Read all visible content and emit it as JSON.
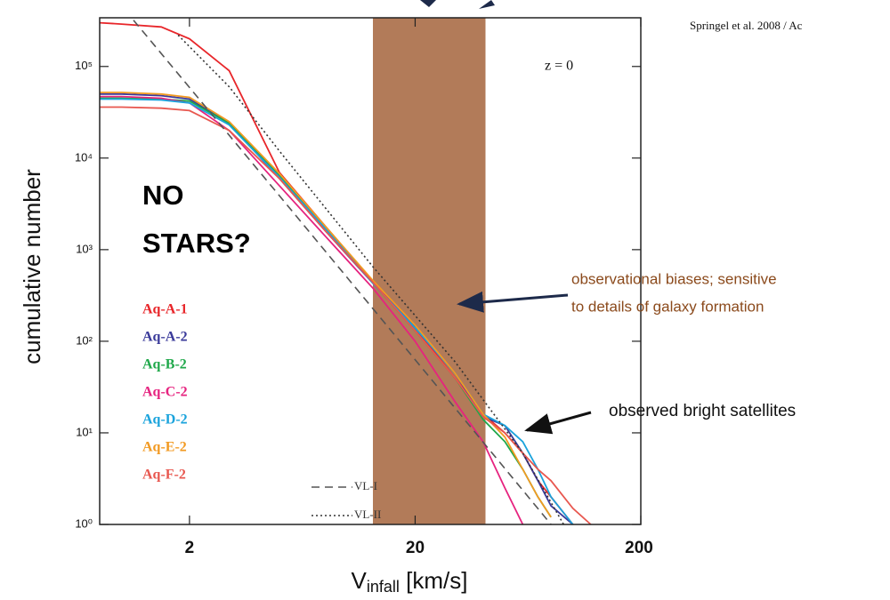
{
  "chart_data": {
    "type": "line",
    "credit": "Springel et al. 2008 / Ac",
    "redshift_label": "z = 0",
    "callout": [
      "NO",
      "STARS?"
    ],
    "band_note": [
      "observational biases; sensitive",
      "to details of galaxy formation"
    ],
    "satellites_note": "observed bright satellites",
    "y_label": "cumulative number",
    "x_label": {
      "main": "V",
      "sub": "infall",
      "unit": " [km/s]"
    },
    "xscale": "log",
    "yscale": "log",
    "xlim": [
      0.8,
      200
    ],
    "ylim": [
      1,
      340000
    ],
    "xticks": [
      2,
      20,
      200
    ],
    "yticks": [
      {
        "value": 1,
        "label": "10⁰"
      },
      {
        "value": 10,
        "label": "10¹"
      },
      {
        "value": 100,
        "label": "10²"
      },
      {
        "value": 1000,
        "label": "10³"
      },
      {
        "value": 10000,
        "label": "10⁴"
      },
      {
        "value": 100000,
        "label": "10⁵"
      }
    ],
    "band": [
      13,
      41
    ],
    "band_color": "#b27b59",
    "x": [
      0.8,
      1,
      1.5,
      2,
      3,
      5,
      8,
      13,
      20,
      30,
      40,
      50,
      60,
      70,
      80,
      100,
      120
    ],
    "series": [
      {
        "name": "Aq-A-1",
        "color": "#e8262a",
        "values": [
          300000,
          290000,
          270000,
          200000,
          90000,
          7000,
          1800,
          450,
          140,
          40,
          16,
          10,
          6,
          3,
          2,
          1,
          null
        ]
      },
      {
        "name": "Aq-A-2",
        "color": "#3a3a9a",
        "values": [
          50000,
          50000,
          48000,
          44000,
          24000,
          6000,
          1600,
          430,
          140,
          45,
          15,
          12,
          6,
          3,
          1.6,
          1,
          null
        ]
      },
      {
        "name": "Aq-B-2",
        "color": "#1fa84a",
        "values": [
          45000,
          45000,
          44000,
          42000,
          24000,
          6500,
          1700,
          440,
          130,
          40,
          14,
          8,
          4,
          2,
          1.2,
          null,
          null
        ]
      },
      {
        "name": "Aq-C-2",
        "color": "#e6237f",
        "values": [
          47000,
          47000,
          45000,
          40000,
          20000,
          5000,
          1400,
          380,
          100,
          22,
          8,
          2.5,
          1,
          null,
          null,
          null,
          null
        ]
      },
      {
        "name": "Aq-D-2",
        "color": "#1aa3dc",
        "values": [
          44000,
          44000,
          43000,
          40000,
          23000,
          6200,
          1700,
          430,
          140,
          45,
          16,
          12,
          8,
          4,
          2,
          1,
          null
        ]
      },
      {
        "name": "Aq-E-2",
        "color": "#f29a22",
        "values": [
          52000,
          52000,
          50000,
          46000,
          25000,
          6800,
          1800,
          460,
          150,
          45,
          16,
          9,
          4,
          2,
          1.2,
          null,
          null
        ]
      },
      {
        "name": "Aq-F-2",
        "color": "#e8574f",
        "values": [
          36000,
          36000,
          35000,
          33000,
          20000,
          6000,
          1600,
          440,
          130,
          40,
          15,
          10,
          6,
          4,
          3,
          1.5,
          1
        ]
      },
      {
        "name": "VL-I",
        "color": "#555555",
        "dash": "dashed",
        "x": [
          1.13,
          2,
          5,
          20,
          80
        ],
        "values": [
          320000,
          59000,
          3900,
          63,
          1
        ]
      },
      {
        "name": "VL-II",
        "color": "#333333",
        "dash": "dotted",
        "x": [
          1.78,
          3,
          5,
          13,
          30,
          60,
          91
        ],
        "values": [
          220000,
          60000,
          12000,
          650,
          60,
          6,
          1
        ]
      }
    ]
  }
}
